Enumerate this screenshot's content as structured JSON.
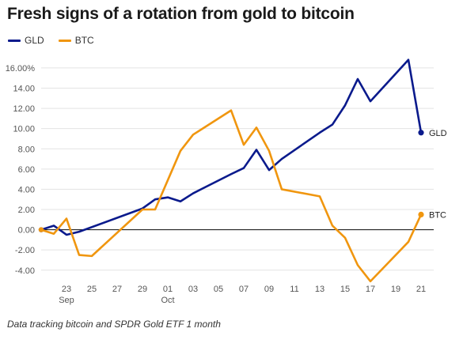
{
  "chart_data": {
    "type": "line",
    "title": "Fresh signs of a rotation from gold to bitcoin",
    "note": "Data tracking bitcoin and SPDR Gold ETF 1 month",
    "x": [
      "2020-09-21",
      "2020-09-22",
      "2020-09-23",
      "2020-09-24",
      "2020-09-25",
      "2020-09-28",
      "2020-09-29",
      "2020-09-30",
      "2020-10-01",
      "2020-10-02",
      "2020-10-03",
      "2020-10-06",
      "2020-10-07",
      "2020-10-08",
      "2020-10-09",
      "2020-10-10",
      "2020-10-13",
      "2020-10-14",
      "2020-10-15",
      "2020-10-16",
      "2020-10-17",
      "2020-10-20",
      "2020-10-21"
    ],
    "x_ticks": [
      {
        "date": "2020-09-23",
        "label": "23",
        "sublabel": "Sep"
      },
      {
        "date": "2020-09-25",
        "label": "25",
        "sublabel": ""
      },
      {
        "date": "2020-09-27",
        "label": "27",
        "sublabel": ""
      },
      {
        "date": "2020-09-29",
        "label": "29",
        "sublabel": ""
      },
      {
        "date": "2020-10-01",
        "label": "01",
        "sublabel": "Oct"
      },
      {
        "date": "2020-10-03",
        "label": "03",
        "sublabel": ""
      },
      {
        "date": "2020-10-05",
        "label": "05",
        "sublabel": ""
      },
      {
        "date": "2020-10-07",
        "label": "07",
        "sublabel": ""
      },
      {
        "date": "2020-10-09",
        "label": "09",
        "sublabel": ""
      },
      {
        "date": "2020-10-11",
        "label": "11",
        "sublabel": ""
      },
      {
        "date": "2020-10-13",
        "label": "13",
        "sublabel": ""
      },
      {
        "date": "2020-10-15",
        "label": "15",
        "sublabel": ""
      },
      {
        "date": "2020-10-17",
        "label": "17",
        "sublabel": ""
      },
      {
        "date": "2020-10-19",
        "label": "19",
        "sublabel": ""
      },
      {
        "date": "2020-10-21",
        "label": "21",
        "sublabel": ""
      }
    ],
    "y_ticks": [
      "16.00%",
      "14.00",
      "12.00",
      "10.00",
      "8.00",
      "6.00",
      "4.00",
      "2.00",
      "0.00",
      "-2.00",
      "-4.00"
    ],
    "y_tick_values": [
      16,
      14,
      12,
      10,
      8,
      6,
      4,
      2,
      0,
      -2,
      -4
    ],
    "ylim": [
      -4.8,
      17.4
    ],
    "xlim": [
      "2020-09-21",
      "2020-10-22"
    ],
    "grid": "horizontal",
    "legend_placement": "top-left",
    "series": [
      {
        "name": "GLD",
        "color": "#0a1a8c",
        "end_label": "GLD",
        "points": [
          [
            "2020-09-21",
            0.0
          ],
          [
            "2020-09-22",
            0.4
          ],
          [
            "2020-09-23",
            -0.5
          ],
          [
            "2020-09-24",
            -0.2
          ],
          [
            "2020-09-29",
            2.1
          ],
          [
            "2020-09-30",
            3.0
          ],
          [
            "2020-10-01",
            3.2
          ],
          [
            "2020-10-02",
            2.8
          ],
          [
            "2020-10-03",
            3.6
          ],
          [
            "2020-10-06",
            5.5
          ],
          [
            "2020-10-07",
            6.1
          ],
          [
            "2020-10-08",
            7.9
          ],
          [
            "2020-10-09",
            5.9
          ],
          [
            "2020-10-10",
            7.0
          ],
          [
            "2020-10-13",
            9.6
          ],
          [
            "2020-10-14",
            10.4
          ],
          [
            "2020-10-15",
            12.3
          ],
          [
            "2020-10-16",
            14.9
          ],
          [
            "2020-10-17",
            12.7
          ],
          [
            "2020-10-20",
            16.8
          ],
          [
            "2020-10-21",
            9.6
          ]
        ]
      },
      {
        "name": "BTC",
        "color": "#f0960f",
        "end_label": "BTC",
        "points": [
          [
            "2020-09-21",
            0.0
          ],
          [
            "2020-09-22",
            -0.4
          ],
          [
            "2020-09-23",
            1.1
          ],
          [
            "2020-09-24",
            -2.5
          ],
          [
            "2020-09-25",
            -2.6
          ],
          [
            "2020-09-29",
            2.0
          ],
          [
            "2020-09-30",
            2.0
          ],
          [
            "2020-10-02",
            7.8
          ],
          [
            "2020-10-03",
            9.4
          ],
          [
            "2020-10-06",
            11.8
          ],
          [
            "2020-10-07",
            8.4
          ],
          [
            "2020-10-08",
            10.1
          ],
          [
            "2020-10-09",
            7.8
          ],
          [
            "2020-10-10",
            4.0
          ],
          [
            "2020-10-13",
            3.3
          ],
          [
            "2020-10-14",
            0.4
          ],
          [
            "2020-10-15",
            -0.8
          ],
          [
            "2020-10-16",
            -3.5
          ],
          [
            "2020-10-17",
            -5.1
          ],
          [
            "2020-10-20",
            -1.2
          ],
          [
            "2020-10-21",
            1.5
          ]
        ]
      }
    ]
  }
}
